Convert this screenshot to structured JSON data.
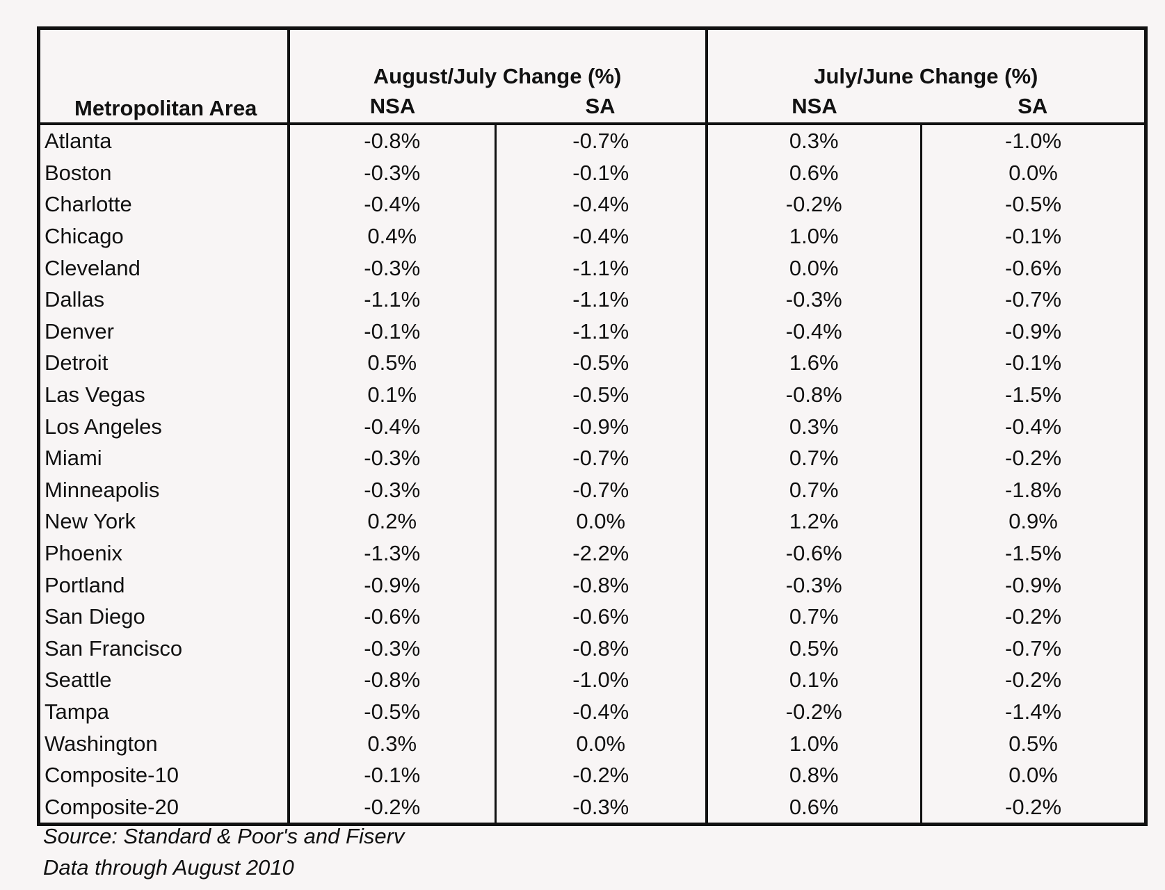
{
  "chart_data": {
    "type": "table",
    "columns": {
      "area": "Metropolitan Area",
      "groups": [
        {
          "label": "August/July Change (%)",
          "sub": [
            "NSA",
            "SA"
          ]
        },
        {
          "label": "July/June Change (%)",
          "sub": [
            "NSA",
            "SA"
          ]
        }
      ]
    },
    "rows": [
      {
        "area": "Atlanta",
        "values": [
          "-0.8%",
          "-0.7%",
          "0.3%",
          "-1.0%"
        ]
      },
      {
        "area": "Boston",
        "values": [
          "-0.3%",
          "-0.1%",
          "0.6%",
          "0.0%"
        ]
      },
      {
        "area": "Charlotte",
        "values": [
          "-0.4%",
          "-0.4%",
          "-0.2%",
          "-0.5%"
        ]
      },
      {
        "area": "Chicago",
        "values": [
          "0.4%",
          "-0.4%",
          "1.0%",
          "-0.1%"
        ]
      },
      {
        "area": "Cleveland",
        "values": [
          "-0.3%",
          "-1.1%",
          "0.0%",
          "-0.6%"
        ]
      },
      {
        "area": "Dallas",
        "values": [
          "-1.1%",
          "-1.1%",
          "-0.3%",
          "-0.7%"
        ]
      },
      {
        "area": "Denver",
        "values": [
          "-0.1%",
          "-1.1%",
          "-0.4%",
          "-0.9%"
        ]
      },
      {
        "area": "Detroit",
        "values": [
          "0.5%",
          "-0.5%",
          "1.6%",
          "-0.1%"
        ]
      },
      {
        "area": "Las Vegas",
        "values": [
          "0.1%",
          "-0.5%",
          "-0.8%",
          "-1.5%"
        ]
      },
      {
        "area": "Los Angeles",
        "values": [
          "-0.4%",
          "-0.9%",
          "0.3%",
          "-0.4%"
        ]
      },
      {
        "area": "Miami",
        "values": [
          "-0.3%",
          "-0.7%",
          "0.7%",
          "-0.2%"
        ]
      },
      {
        "area": "Minneapolis",
        "values": [
          "-0.3%",
          "-0.7%",
          "0.7%",
          "-1.8%"
        ]
      },
      {
        "area": "New York",
        "values": [
          "0.2%",
          "0.0%",
          "1.2%",
          "0.9%"
        ]
      },
      {
        "area": "Phoenix",
        "values": [
          "-1.3%",
          "-2.2%",
          "-0.6%",
          "-1.5%"
        ]
      },
      {
        "area": "Portland",
        "values": [
          "-0.9%",
          "-0.8%",
          "-0.3%",
          "-0.9%"
        ]
      },
      {
        "area": "San Diego",
        "values": [
          "-0.6%",
          "-0.6%",
          "0.7%",
          "-0.2%"
        ]
      },
      {
        "area": "San Francisco",
        "values": [
          "-0.3%",
          "-0.8%",
          "0.5%",
          "-0.7%"
        ]
      },
      {
        "area": "Seattle",
        "values": [
          "-0.8%",
          "-1.0%",
          "0.1%",
          "-0.2%"
        ]
      },
      {
        "area": "Tampa",
        "values": [
          "-0.5%",
          "-0.4%",
          "-0.2%",
          "-1.4%"
        ]
      },
      {
        "area": "Washington",
        "values": [
          "0.3%",
          "0.0%",
          "1.0%",
          "0.5%"
        ]
      },
      {
        "area": "Composite-10",
        "values": [
          "-0.1%",
          "-0.2%",
          "0.8%",
          "0.0%"
        ]
      },
      {
        "area": "Composite-20",
        "values": [
          "-0.2%",
          "-0.3%",
          "0.6%",
          "-0.2%"
        ]
      }
    ]
  },
  "notes": {
    "source": "Source: Standard & Poor's and Fiserv",
    "data_through": "Data through August 2010"
  }
}
